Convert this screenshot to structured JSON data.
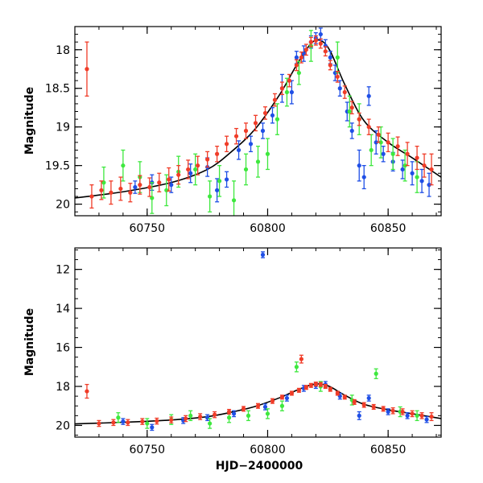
{
  "chart_data": [
    {
      "type": "scatter",
      "title": "",
      "xlabel": "",
      "ylabel": "Magnitude",
      "xlim": [
        60720,
        60872
      ],
      "ylim": [
        20.15,
        17.7
      ],
      "y_inverted": true,
      "xticks": [
        60750,
        60800,
        60850
      ],
      "xtick_labels": [
        "60750",
        "60800",
        "60850"
      ],
      "yticks": [
        18,
        18.5,
        19,
        19.5,
        20
      ],
      "ytick_labels": [
        "18",
        "18.5",
        "19",
        "19.5",
        "20"
      ],
      "grid": false,
      "model_curve": {
        "color": "#000000",
        "x": [
          60720,
          60740,
          60760,
          60775,
          60785,
          60795,
          60805,
          60812,
          60818,
          60822,
          60826,
          60832,
          60840,
          60850,
          60860,
          60872
        ],
        "y": [
          19.92,
          19.84,
          19.72,
          19.55,
          19.32,
          19.02,
          18.58,
          18.2,
          17.92,
          17.88,
          18.02,
          18.45,
          18.92,
          19.2,
          19.4,
          19.65
        ]
      },
      "series": [
        {
          "color": "#1f4fe6",
          "x": [
            60745,
            60752,
            60760,
            60768,
            60775,
            60779,
            60783,
            60788,
            60793,
            60798,
            60802,
            60806,
            60810,
            60812,
            60815,
            60818,
            60820,
            60822,
            60824,
            60826,
            60828,
            60830,
            60833,
            60835,
            60838,
            60840,
            60842,
            60845,
            60848,
            60852,
            60856,
            60860,
            60864,
            60867
          ],
          "y": [
            19.78,
            19.72,
            19.75,
            19.6,
            19.52,
            19.82,
            19.68,
            19.3,
            19.22,
            19.05,
            18.85,
            18.5,
            18.55,
            18.1,
            18.05,
            17.9,
            17.85,
            17.8,
            17.95,
            18.1,
            18.3,
            18.5,
            18.8,
            19.05,
            19.5,
            19.65,
            18.6,
            19.2,
            19.35,
            19.45,
            19.55,
            19.6,
            19.7,
            19.75
          ],
          "err": [
            0.08,
            0.1,
            0.1,
            0.12,
            0.12,
            0.15,
            0.1,
            0.12,
            0.1,
            0.1,
            0.1,
            0.18,
            0.15,
            0.08,
            0.1,
            0.08,
            0.07,
            0.08,
            0.08,
            0.08,
            0.1,
            0.1,
            0.12,
            0.1,
            0.2,
            0.15,
            0.12,
            0.15,
            0.1,
            0.12,
            0.12,
            0.15,
            0.15,
            0.15
          ]
        },
        {
          "color": "#3ee83e",
          "x": [
            60732,
            60740,
            60747,
            60752,
            60758,
            60763,
            60770,
            60776,
            60780,
            60786,
            60791,
            60796,
            60800,
            60804,
            60808,
            60813,
            60818,
            60829,
            60834,
            60838,
            60843,
            60847,
            60852,
            60857,
            60862
          ],
          "y": [
            19.72,
            19.5,
            19.65,
            19.92,
            19.82,
            19.58,
            19.55,
            19.9,
            19.7,
            19.95,
            19.55,
            19.45,
            19.35,
            18.9,
            18.55,
            18.3,
            17.95,
            18.1,
            18.8,
            18.9,
            19.3,
            19.2,
            19.35,
            19.5,
            19.65
          ],
          "err": [
            0.2,
            0.2,
            0.2,
            0.2,
            0.2,
            0.2,
            0.2,
            0.2,
            0.2,
            0.25,
            0.2,
            0.2,
            0.2,
            0.2,
            0.18,
            0.15,
            0.2,
            0.2,
            0.2,
            0.2,
            0.2,
            0.2,
            0.2,
            0.2,
            0.2
          ]
        },
        {
          "color": "#f03c28",
          "x": [
            60725,
            60727,
            60731,
            60735,
            60739,
            60743,
            60747,
            60751,
            60755,
            60759,
            60763,
            60767,
            60771,
            60775,
            60779,
            60783,
            60787,
            60791,
            60795,
            60799,
            60803,
            60806,
            60809,
            60812,
            60814,
            60816,
            60818,
            60820,
            60822,
            60824,
            60826,
            60829,
            60832,
            60835,
            60838,
            60842,
            60846,
            60850,
            60854,
            60858,
            60862,
            60865,
            60868
          ],
          "y": [
            18.25,
            19.9,
            19.82,
            19.85,
            19.8,
            19.85,
            19.75,
            19.78,
            19.72,
            19.68,
            19.62,
            19.55,
            19.5,
            19.42,
            19.35,
            19.22,
            19.12,
            19.05,
            18.95,
            18.82,
            18.65,
            18.5,
            18.4,
            18.2,
            18.1,
            18.0,
            17.9,
            17.88,
            17.92,
            18.02,
            18.2,
            18.35,
            18.55,
            18.75,
            18.9,
            19.0,
            19.1,
            19.2,
            19.25,
            19.35,
            19.4,
            19.5,
            19.55
          ],
          "err": [
            0.35,
            0.15,
            0.12,
            0.15,
            0.15,
            0.12,
            0.12,
            0.12,
            0.12,
            0.15,
            0.12,
            0.12,
            0.12,
            0.1,
            0.1,
            0.1,
            0.1,
            0.1,
            0.1,
            0.08,
            0.08,
            0.08,
            0.08,
            0.07,
            0.07,
            0.07,
            0.06,
            0.06,
            0.06,
            0.06,
            0.06,
            0.07,
            0.08,
            0.08,
            0.08,
            0.1,
            0.1,
            0.12,
            0.12,
            0.15,
            0.15,
            0.15,
            0.2
          ]
        }
      ]
    },
    {
      "type": "scatter",
      "title": "",
      "xlabel": "HJD−2400000",
      "ylabel": "Magnitude",
      "xlim": [
        60720,
        60872
      ],
      "ylim": [
        20.6,
        10.9
      ],
      "y_inverted": true,
      "xticks": [
        60750,
        60800,
        60850
      ],
      "xtick_labels": [
        "60750",
        "60800",
        "60850"
      ],
      "yticks": [
        12,
        14,
        16,
        18,
        20
      ],
      "ytick_labels": [
        "12",
        "14",
        "16",
        "18",
        "20"
      ],
      "grid": false,
      "model_curve": {
        "color": "#000000",
        "x": [
          60720,
          60740,
          60760,
          60775,
          60785,
          60795,
          60805,
          60812,
          60818,
          60822,
          60826,
          60832,
          60840,
          60850,
          60860,
          60872
        ],
        "y": [
          19.92,
          19.84,
          19.72,
          19.55,
          19.32,
          19.02,
          18.58,
          18.2,
          17.92,
          17.88,
          18.02,
          18.45,
          18.92,
          19.2,
          19.4,
          19.65
        ]
      },
      "series": [
        {
          "color": "#1f4fe6",
          "x": [
            60740,
            60752,
            60765,
            60775,
            60786,
            60798,
            60799,
            60808,
            60815,
            60820,
            60824,
            60830,
            60838,
            60842,
            60850,
            60858,
            60866
          ],
          "y": [
            19.8,
            20.1,
            19.75,
            19.6,
            19.4,
            11.25,
            19.05,
            18.6,
            18.1,
            17.95,
            17.9,
            18.5,
            19.5,
            18.6,
            19.3,
            19.5,
            19.7
          ],
          "err": [
            0.15,
            0.15,
            0.15,
            0.15,
            0.15,
            0.15,
            0.15,
            0.15,
            0.15,
            0.15,
            0.15,
            0.15,
            0.2,
            0.15,
            0.15,
            0.15,
            0.15
          ]
        },
        {
          "color": "#3ee83e",
          "x": [
            60738,
            60750,
            60760,
            60768,
            60776,
            60784,
            60792,
            60800,
            60806,
            60812,
            60822,
            60835,
            60845,
            60855,
            60862
          ],
          "y": [
            19.6,
            19.9,
            19.7,
            19.5,
            19.9,
            19.6,
            19.5,
            19.4,
            19.0,
            17.0,
            18.0,
            18.7,
            17.35,
            19.3,
            19.5
          ],
          "err": [
            0.25,
            0.25,
            0.25,
            0.25,
            0.25,
            0.25,
            0.25,
            0.25,
            0.25,
            0.25,
            0.25,
            0.25,
            0.25,
            0.25,
            0.25
          ]
        },
        {
          "color": "#f03c28",
          "x": [
            60725,
            60730,
            60736,
            60742,
            60748,
            60754,
            60760,
            60766,
            60772,
            60778,
            60784,
            60790,
            60796,
            60802,
            60806,
            60810,
            60813,
            60814,
            60816,
            60818,
            60820,
            60822,
            60824,
            60826,
            60829,
            60832,
            60836,
            60840,
            60844,
            60848,
            60852,
            60856,
            60860,
            60864,
            60868
          ],
          "y": [
            18.25,
            19.9,
            19.85,
            19.85,
            19.8,
            19.78,
            19.72,
            19.65,
            19.55,
            19.45,
            19.3,
            19.15,
            19.0,
            18.75,
            18.55,
            18.35,
            18.2,
            16.6,
            18.05,
            17.95,
            17.88,
            17.9,
            18.0,
            18.15,
            18.35,
            18.55,
            18.8,
            18.95,
            19.05,
            19.15,
            19.25,
            19.3,
            19.4,
            19.5,
            19.55
          ],
          "err": [
            0.35,
            0.15,
            0.15,
            0.15,
            0.15,
            0.15,
            0.15,
            0.15,
            0.15,
            0.15,
            0.12,
            0.12,
            0.12,
            0.12,
            0.1,
            0.1,
            0.1,
            0.2,
            0.1,
            0.1,
            0.1,
            0.1,
            0.1,
            0.1,
            0.1,
            0.1,
            0.12,
            0.12,
            0.12,
            0.12,
            0.15,
            0.15,
            0.15,
            0.15,
            0.2
          ]
        }
      ]
    }
  ]
}
